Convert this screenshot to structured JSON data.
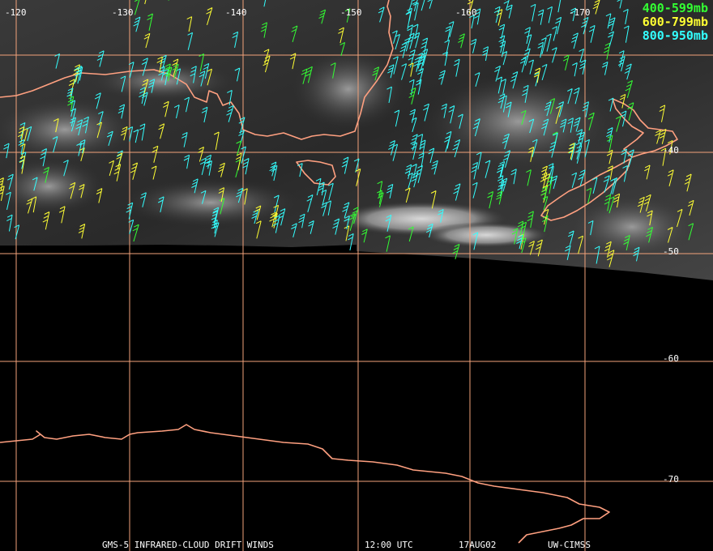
{
  "legend": [
    {
      "label": "400-599mb",
      "color": "#33ff33"
    },
    {
      "label": "600-799mb",
      "color": "#ffff33"
    },
    {
      "label": "800-950mb",
      "color": "#33ffff"
    }
  ],
  "lon_labels": [
    "-120",
    "-130",
    "-140",
    "-150",
    "-160",
    "-170"
  ],
  "lat_labels": [
    "-40",
    "-50",
    "-60",
    "-70"
  ],
  "footer": {
    "product": "GMS-5 INFRARED-CLOUD DRIFT WINDS",
    "time": "12:00 UTC",
    "date": "17AUG02",
    "source": "UW-CIMSS"
  },
  "colors": {
    "coast": "#ffa080",
    "grid": "#f2a27a",
    "background": "#000000"
  }
}
